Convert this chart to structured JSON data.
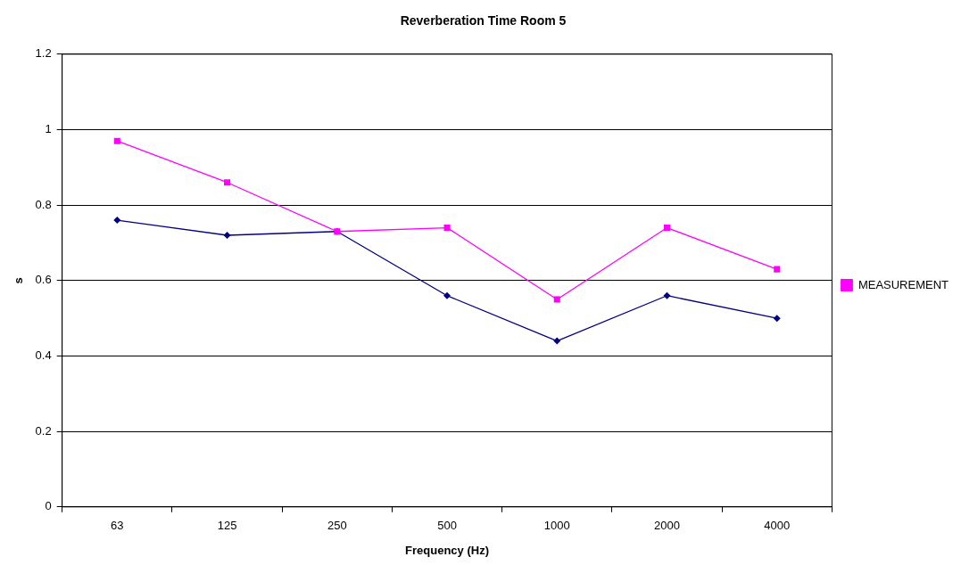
{
  "chart_data": {
    "type": "line",
    "title": "Reverberation Time Room 5",
    "xlabel": "Frequency (Hz)",
    "ylabel": "s",
    "categories": [
      "63",
      "125",
      "250",
      "500",
      "1000",
      "2000",
      "4000"
    ],
    "series": [
      {
        "color": "#000080",
        "marker": "diamond",
        "values": [
          0.76,
          0.72,
          0.73,
          0.56,
          0.44,
          0.56,
          0.5
        ]
      },
      {
        "name": "MEASUREMENT",
        "color": "#ff00ff",
        "marker": "square",
        "values": [
          0.97,
          0.86,
          0.73,
          0.74,
          0.55,
          0.74,
          0.63
        ]
      }
    ],
    "ylim": [
      0,
      1.2
    ],
    "yticks": [
      0,
      0.2,
      0.4,
      0.6,
      0.8,
      1,
      1.2
    ],
    "grid": "y",
    "legend": "right",
    "line_style": "solid"
  }
}
